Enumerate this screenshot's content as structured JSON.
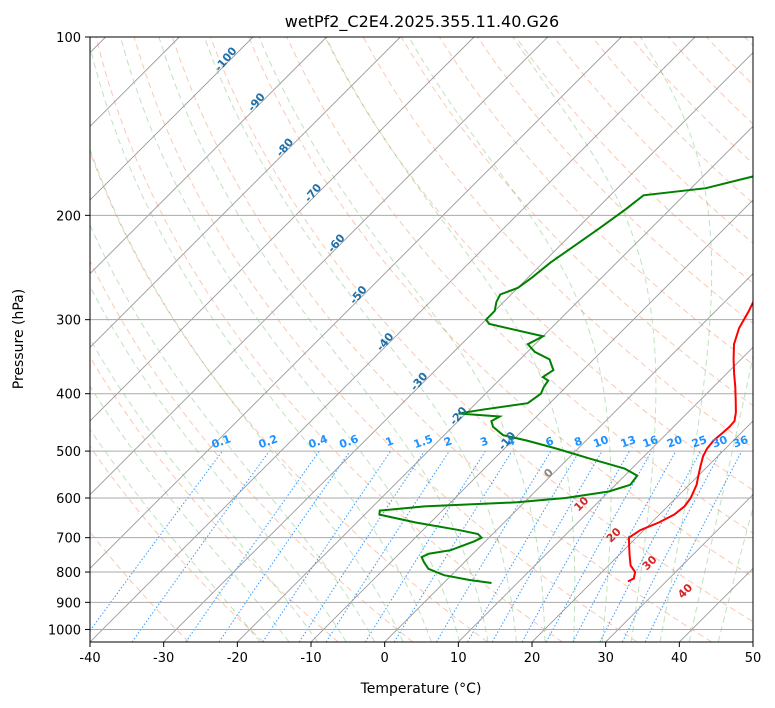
{
  "chart_data": {
    "type": "line",
    "title": "wetPf2_C2E4.2025.355.11.40.G26",
    "xlabel": "Temperature (°C)",
    "ylabel": "Pressure (hPa)",
    "xlim": [
      -40,
      50
    ],
    "ylim": [
      1050,
      100
    ],
    "y_scale": "log",
    "grid": true,
    "x_ticks": [
      -40,
      -30,
      -20,
      -10,
      0,
      10,
      20,
      30,
      40,
      50
    ],
    "y_ticks": [
      100,
      200,
      300,
      400,
      500,
      600,
      700,
      800,
      900,
      1000
    ],
    "series": [
      {
        "color": "#ff0000",
        "points": [
          [
            24.8,
            830
          ],
          [
            25.2,
            820
          ],
          [
            24.5,
            800
          ],
          [
            23.0,
            780
          ],
          [
            21.5,
            750
          ],
          [
            20.0,
            720
          ],
          [
            19.0,
            700
          ],
          [
            19.5,
            680
          ],
          [
            21.0,
            660
          ],
          [
            22.0,
            640
          ],
          [
            22.3,
            620
          ],
          [
            22.0,
            600
          ],
          [
            21.0,
            570
          ],
          [
            20.0,
            550
          ],
          [
            19.0,
            530
          ],
          [
            18.0,
            510
          ],
          [
            17.5,
            495
          ],
          [
            17.3,
            480
          ],
          [
            17.5,
            465
          ],
          [
            17.6,
            455
          ],
          [
            17.5,
            445
          ],
          [
            16.5,
            430
          ],
          [
            14.8,
            410
          ],
          [
            13.0,
            390
          ],
          [
            11.0,
            370
          ],
          [
            9.0,
            350
          ],
          [
            7.0,
            330
          ],
          [
            5.5,
            310
          ],
          [
            4.5,
            290
          ],
          [
            3.2,
            270
          ],
          [
            2.3,
            250
          ],
          [
            1.5,
            230
          ],
          [
            0.6,
            210
          ],
          [
            0.0,
            195
          ],
          [
            -0.3,
            180
          ],
          [
            -0.2,
            165
          ],
          [
            0.1,
            150
          ],
          [
            0.5,
            140
          ],
          [
            1.3,
            130
          ],
          [
            2.5,
            122
          ],
          [
            3.8,
            116
          ],
          [
            4.8,
            112
          ],
          [
            4.6,
            108
          ],
          [
            4.3,
            104
          ],
          [
            4.1,
            100
          ]
        ]
      },
      {
        "color": "#008000",
        "points": [
          [
            6.5,
            835
          ],
          [
            3.0,
            825
          ],
          [
            -1.0,
            810
          ],
          [
            -4.0,
            790
          ],
          [
            -5.5,
            770
          ],
          [
            -6.5,
            755
          ],
          [
            -6.0,
            745
          ],
          [
            -3.5,
            735
          ],
          [
            -1.5,
            710
          ],
          [
            -1.0,
            700
          ],
          [
            -2.0,
            690
          ],
          [
            -5.0,
            680
          ],
          [
            -12.0,
            660
          ],
          [
            -18.0,
            640
          ],
          [
            -18.5,
            630
          ],
          [
            -13.0,
            620
          ],
          [
            -1.0,
            610
          ],
          [
            5.0,
            600
          ],
          [
            10.0,
            585
          ],
          [
            12.0,
            570
          ],
          [
            11.7,
            550
          ],
          [
            9.0,
            535
          ],
          [
            3.0,
            515
          ],
          [
            -3.0,
            495
          ],
          [
            -8.0,
            480
          ],
          [
            -12.0,
            470
          ],
          [
            -14.5,
            455
          ],
          [
            -15.5,
            445
          ],
          [
            -15.0,
            437
          ],
          [
            -21.0,
            432
          ],
          [
            -18.0,
            425
          ],
          [
            -13.0,
            415
          ],
          [
            -12.5,
            400
          ],
          [
            -13.0,
            390
          ],
          [
            -13.3,
            380
          ],
          [
            -14.5,
            375
          ],
          [
            -14.0,
            365
          ],
          [
            -16.0,
            350
          ],
          [
            -19.0,
            340
          ],
          [
            -20.0,
            335
          ],
          [
            -21.0,
            330
          ],
          [
            -20.0,
            320
          ],
          [
            -29.0,
            305
          ],
          [
            -30.0,
            300
          ],
          [
            -30.0,
            290
          ],
          [
            -31.0,
            280
          ],
          [
            -31.5,
            272
          ],
          [
            -30.0,
            265
          ],
          [
            -29.5,
            255
          ],
          [
            -29.0,
            240
          ],
          [
            -28.0,
            225
          ],
          [
            -27.0,
            210
          ],
          [
            -26.0,
            195
          ],
          [
            -25.5,
            185
          ],
          [
            -18.0,
            180
          ],
          [
            -12.0,
            170
          ],
          [
            -11.0,
            160
          ],
          [
            -10.5,
            150
          ],
          [
            -10.0,
            145
          ],
          [
            -8.0,
            138
          ],
          [
            -5.5,
            130
          ],
          [
            -3.5,
            122
          ],
          [
            -1.0,
            115
          ],
          [
            1.0,
            110
          ],
          [
            2.5,
            105
          ],
          [
            3.5,
            100
          ]
        ]
      }
    ],
    "mixing_ratio_labels": [
      "0.1",
      "0.2",
      "0.4",
      "0.6",
      "1",
      "1.5",
      "2",
      "3",
      "4",
      "6",
      "8",
      "10",
      "13",
      "16",
      "20",
      "25",
      "30",
      "36"
    ],
    "dry_adiabat_labels": [
      "-100",
      "-90",
      "-80",
      "-70",
      "-60",
      "-50",
      "-40",
      "-30",
      "-20",
      "-10"
    ],
    "moist_adiabat_labels": [
      "0",
      "10",
      "20",
      "30",
      "40"
    ]
  }
}
